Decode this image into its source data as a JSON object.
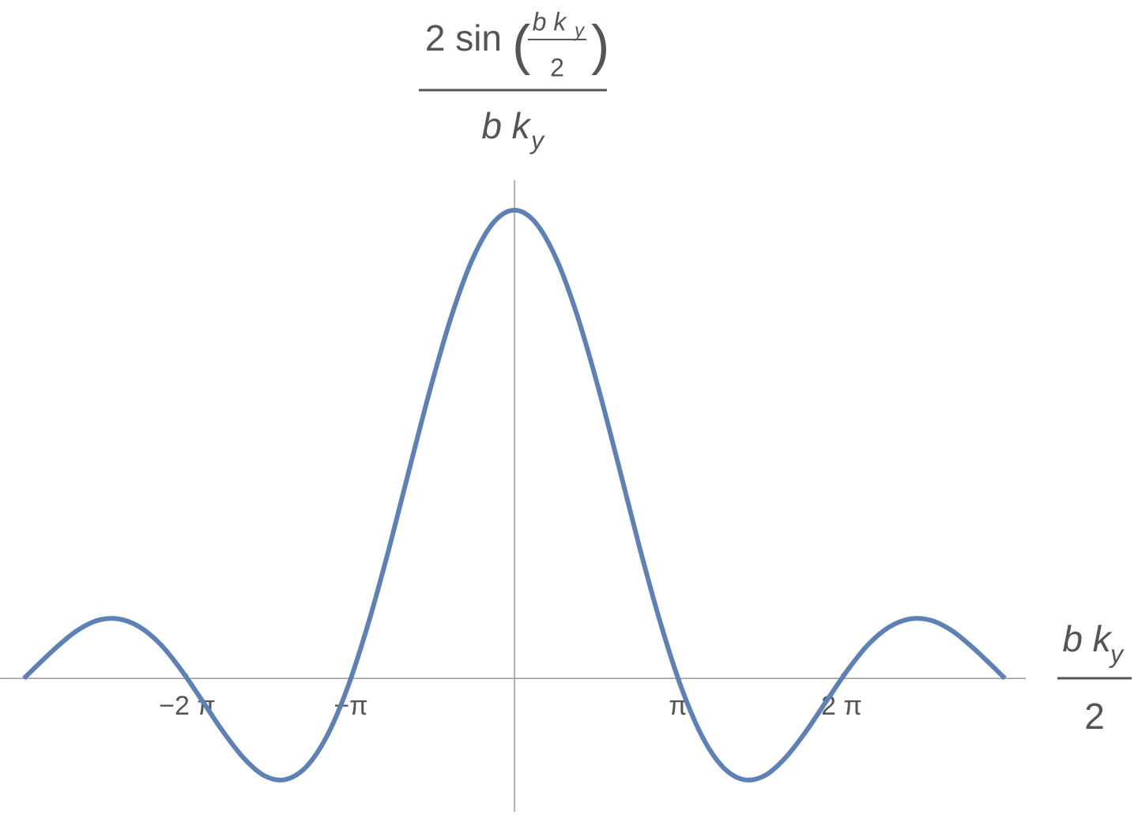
{
  "chart_data": {
    "type": "line",
    "y_label": {
      "prefix": "2 sin",
      "open": "(",
      "inner_num": "b k",
      "inner_sub": "y",
      "inner_den": "2",
      "close": ")",
      "den": "b k",
      "den_sub": "y"
    },
    "x_label": {
      "num": "b k",
      "num_sub": "y",
      "den": "2"
    },
    "x": [
      -9.42,
      -9.2,
      -8.8,
      -8.4,
      -8.0,
      -7.6,
      -7.2,
      -6.8,
      -6.4,
      -6.0,
      -5.6,
      -5.2,
      -4.8,
      -4.4,
      -4.0,
      -3.6,
      -3.2,
      -2.8,
      -2.4,
      -2.0,
      -1.6,
      -1.2,
      -0.8,
      -0.4,
      0,
      0.4,
      0.8,
      1.2,
      1.6,
      2.0,
      2.4,
      2.8,
      3.2,
      3.6,
      4.0,
      4.4,
      4.8,
      5.2,
      5.6,
      6.0,
      6.4,
      6.8,
      7.2,
      7.6,
      8.0,
      8.4,
      8.8,
      9.2,
      9.42
    ],
    "values": [
      0,
      0.024,
      0.066,
      0.102,
      0.124,
      0.127,
      0.11,
      0.073,
      0.018,
      -0.047,
      -0.113,
      -0.17,
      -0.208,
      -0.216,
      -0.189,
      -0.123,
      -0.018,
      0.12,
      0.281,
      0.455,
      0.625,
      0.777,
      0.897,
      0.974,
      1,
      0.974,
      0.897,
      0.777,
      0.625,
      0.455,
      0.281,
      0.12,
      -0.018,
      -0.123,
      -0.189,
      -0.216,
      -0.208,
      -0.17,
      -0.113,
      -0.047,
      0.018,
      0.073,
      0.11,
      0.127,
      0.124,
      0.102,
      0.066,
      0.024,
      0
    ],
    "color": "#5e81b5",
    "xlim": [
      -9.88,
      9.82
    ],
    "ylim": [
      -0.285,
      1.064
    ],
    "xticks": [
      {
        "value": -6.283,
        "label": "−2 π"
      },
      {
        "value": -3.1416,
        "label": "−π"
      },
      {
        "value": 3.1416,
        "label": "π"
      },
      {
        "value": 6.283,
        "label": "2 π"
      }
    ]
  }
}
